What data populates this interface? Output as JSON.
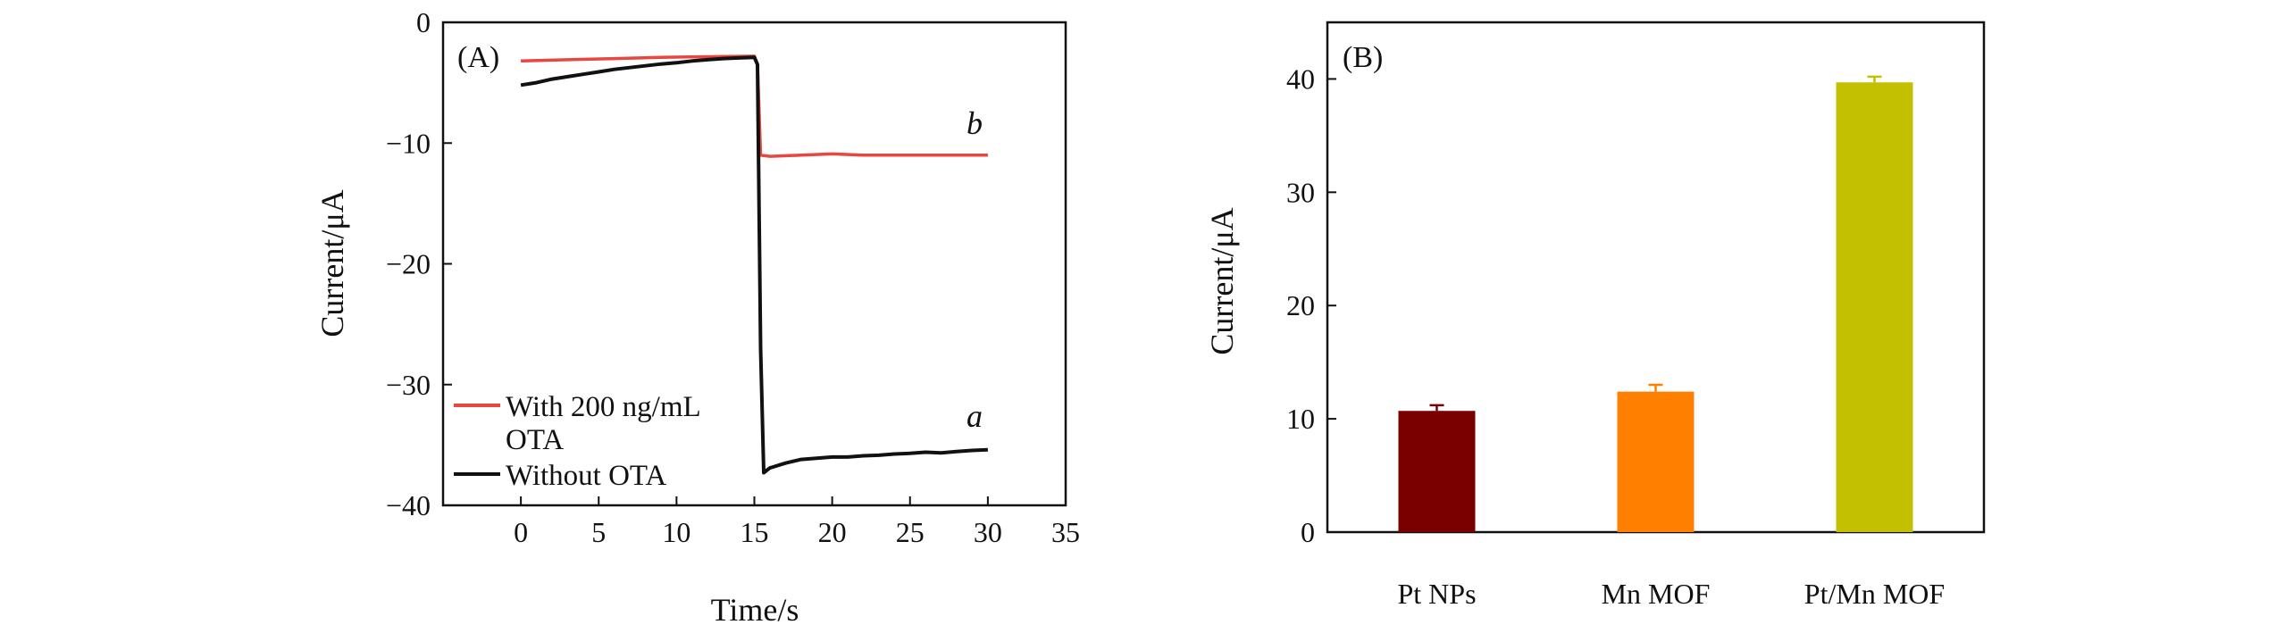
{
  "chart_data": [
    {
      "type": "line",
      "panel_label": "(A)",
      "xlabel": "Time/s",
      "ylabel": "Current/μA",
      "xlim": [
        -5,
        35
      ],
      "ylim": [
        -40,
        0
      ],
      "xticks": [
        0,
        5,
        10,
        15,
        20,
        25,
        30,
        35
      ],
      "yticks": [
        0,
        -10,
        -20,
        -30,
        -40
      ],
      "xtick_labels": [
        "0",
        "5",
        "10",
        "15",
        "20",
        "25",
        "30",
        "35"
      ],
      "ytick_labels": [
        "0",
        "−10",
        "−20",
        "−30",
        "−40"
      ],
      "series": [
        {
          "name": "With 200 ng/mL OTA",
          "legend_line1": "With 200 ng/mL",
          "legend_line2": "OTA",
          "curve_label": "b",
          "color": "#e8463e",
          "points": [
            [
              0,
              -3.2
            ],
            [
              3,
              -3.1
            ],
            [
              6,
              -3.0
            ],
            [
              9,
              -2.9
            ],
            [
              12,
              -2.85
            ],
            [
              15,
              -2.8
            ],
            [
              15.2,
              -3.5
            ],
            [
              15.4,
              -11.0
            ],
            [
              16,
              -11.1
            ],
            [
              18,
              -11.0
            ],
            [
              20,
              -10.9
            ],
            [
              22,
              -11.0
            ],
            [
              25,
              -11.0
            ],
            [
              28,
              -11.0
            ],
            [
              30,
              -11.0
            ]
          ]
        },
        {
          "name": "Without OTA",
          "legend_line1": "Without OTA",
          "curve_label": "a",
          "color": "#111111",
          "points": [
            [
              0,
              -5.2
            ],
            [
              1,
              -5.0
            ],
            [
              2,
              -4.7
            ],
            [
              3,
              -4.5
            ],
            [
              4,
              -4.3
            ],
            [
              5,
              -4.1
            ],
            [
              6,
              -3.9
            ],
            [
              7,
              -3.75
            ],
            [
              8,
              -3.6
            ],
            [
              9,
              -3.45
            ],
            [
              10,
              -3.35
            ],
            [
              11,
              -3.2
            ],
            [
              12,
              -3.1
            ],
            [
              13,
              -3.0
            ],
            [
              14,
              -2.95
            ],
            [
              15,
              -2.9
            ],
            [
              15.2,
              -3.5
            ],
            [
              15.4,
              -27.0
            ],
            [
              15.6,
              -37.3
            ],
            [
              16,
              -36.9
            ],
            [
              17,
              -36.5
            ],
            [
              18,
              -36.2
            ],
            [
              19,
              -36.1
            ],
            [
              20,
              -36.0
            ],
            [
              21,
              -36.0
            ],
            [
              22,
              -35.9
            ],
            [
              23,
              -35.85
            ],
            [
              24,
              -35.75
            ],
            [
              25,
              -35.7
            ],
            [
              26,
              -35.6
            ],
            [
              27,
              -35.65
            ],
            [
              28,
              -35.55
            ],
            [
              29,
              -35.45
            ],
            [
              30,
              -35.4
            ]
          ]
        }
      ]
    },
    {
      "type": "bar",
      "panel_label": "(B)",
      "ylabel": "Current/μA",
      "ylim": [
        0,
        45
      ],
      "yticks": [
        0,
        10,
        20,
        30,
        40
      ],
      "ytick_labels": [
        "0",
        "10",
        "20",
        "30",
        "40"
      ],
      "categories": [
        "Pt NPs",
        "Mn MOF",
        "Pt/Mn MOF"
      ],
      "values": [
        10.7,
        12.4,
        39.7
      ],
      "errors": [
        0.5,
        0.6,
        0.5
      ],
      "colors": [
        "#7a0000",
        "#ff8000",
        "#c2c000"
      ]
    }
  ]
}
